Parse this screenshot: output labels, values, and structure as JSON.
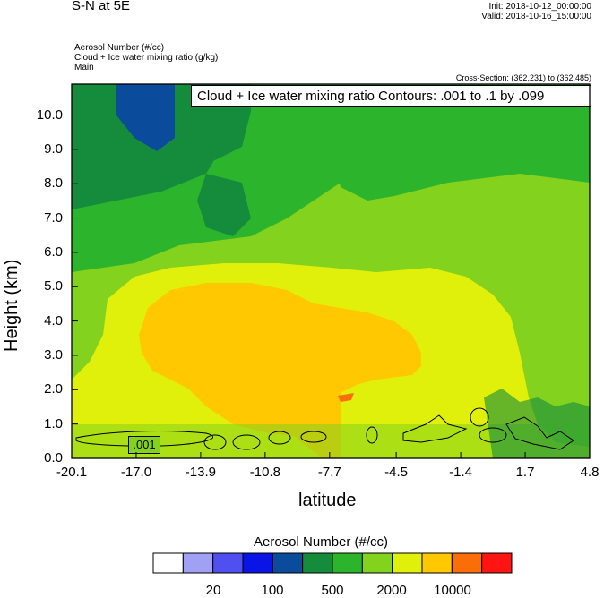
{
  "header": {
    "title": "S-N at 5E",
    "init": "Init: 2018-10-12_00:00:00",
    "valid": "Valid: 2018-10-16_15:00:00",
    "field1": "Aerosol Number   (#/cc)",
    "field2": "Cloud + Ice water mixing ratio   (g/kg)",
    "field3": "Main",
    "cross_section": "Cross-Section: (362,231) to (362,485)",
    "contour_info": "Cloud + Ice water mixing ratio Contours: .001 to .1 by .099",
    "contour_label": ".001"
  },
  "chart_data": {
    "type": "heatmap",
    "title": "S-N at 5E",
    "xlabel": "latitude",
    "ylabel": "Height (km)",
    "xlim": [
      -20.1,
      4.8
    ],
    "ylim": [
      0.0,
      10.9
    ],
    "x_ticks": [
      "-20.1",
      "-17.0",
      "-13.9",
      "-10.8",
      "-7.7",
      "-4.5",
      "-1.4",
      "1.7",
      "4.8"
    ],
    "x_tick_values": [
      -20.1,
      -17.0,
      -13.9,
      -10.8,
      -7.7,
      -4.5,
      -1.4,
      1.7,
      4.8
    ],
    "y_ticks": [
      "0.0",
      "1.0",
      "2.0",
      "3.0",
      "4.0",
      "5.0",
      "6.0",
      "7.0",
      "8.0",
      "9.0",
      "10.0"
    ],
    "y_tick_values": [
      0,
      1,
      2,
      3,
      4,
      5,
      6,
      7,
      8,
      9,
      10
    ],
    "colorbar": {
      "title": "Aerosol Number  (#/cc)",
      "colors": [
        "#ffffff",
        "#a0a0f5",
        "#5050f0",
        "#0a14e6",
        "#0a4b9b",
        "#148c3c",
        "#2db42d",
        "#82d21e",
        "#e1f00a",
        "#ffc800",
        "#fa6e0a",
        "#ff1414"
      ],
      "labels": [
        "20",
        "100",
        "500",
        "2000",
        "10000"
      ]
    }
  }
}
